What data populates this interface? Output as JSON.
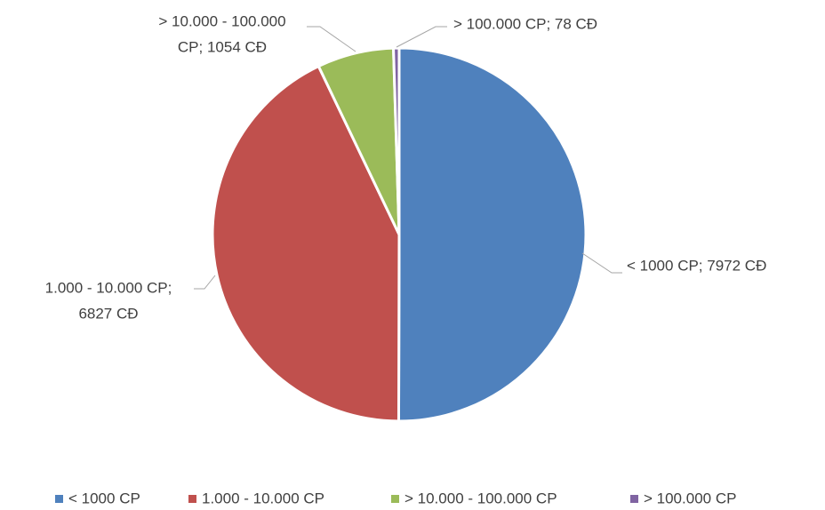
{
  "chart_data": {
    "type": "pie",
    "categories": [
      "< 1000 CP",
      "1.000 - 10.000 CP",
      "> 10.000 - 100.000 CP",
      "> 100.000 CP"
    ],
    "values": [
      7972,
      6827,
      1054,
      78
    ],
    "value_labels": [
      [
        "< 1000 CP; 7972 CĐ"
      ],
      [
        "1.000 - 10.000 CP;",
        "6827 CĐ"
      ],
      [
        "> 10.000 - 100.000",
        "CP; 1054 CĐ"
      ],
      [
        "> 100.000 CP; 78 CĐ"
      ]
    ],
    "colors": [
      "#4f81bd",
      "#c0504d",
      "#9bbb59",
      "#8064a2"
    ],
    "legend": "bottom"
  }
}
